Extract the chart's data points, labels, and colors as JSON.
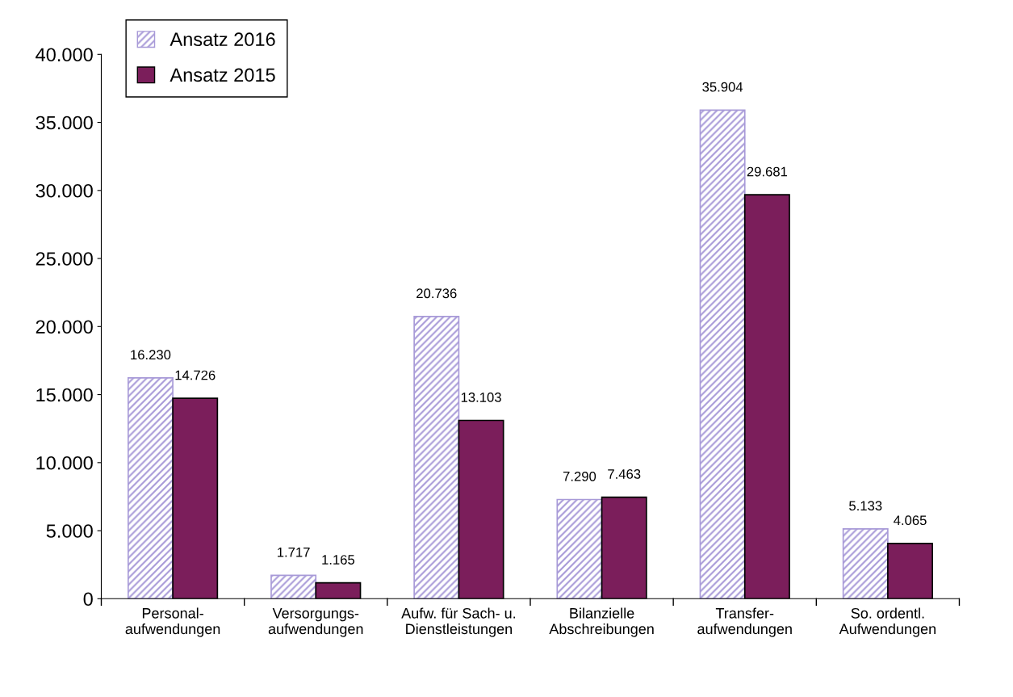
{
  "chart_data": {
    "type": "bar",
    "categories": [
      "Personal-\naufwendungen",
      "Versorgungs-\naufwendungen",
      "Aufw. für Sach- u.\nDienstleistungen",
      "Bilanzielle\nAbschreibungen",
      "Transfer-\naufwendungen",
      "So. ordentl.\nAufwendungen"
    ],
    "series": [
      {
        "name": "Ansatz 2016",
        "color": "#a89ad8",
        "values": [
          16230,
          1717,
          20736,
          7290,
          35904,
          5133
        ],
        "value_labels": [
          "16.230",
          "1.717",
          "20.736",
          "7.290",
          "35.904",
          "5.133"
        ]
      },
      {
        "name": "Ansatz 2015",
        "color": "#7b1e5b",
        "values": [
          14726,
          1165,
          13103,
          7463,
          29681,
          4065
        ],
        "value_labels": [
          "14.726",
          "1.165",
          "13.103",
          "7.463",
          "29.681",
          "4.065"
        ]
      }
    ],
    "ylim": [
      0,
      40000
    ],
    "yticks": [
      0,
      {
        "value": 5000,
        "label": "5.000"
      },
      {
        "value": 10000,
        "label": "10.000"
      },
      {
        "value": 15000,
        "label": "15.000"
      },
      {
        "value": 20000,
        "label": "20.000"
      },
      {
        "value": 25000,
        "label": "25.000"
      },
      {
        "value": 30000,
        "label": "30.000"
      },
      {
        "value": 35000,
        "label": "35.000"
      },
      {
        "value": 40000,
        "label": "40.000"
      }
    ],
    "legend": "top left",
    "grid": false
  }
}
